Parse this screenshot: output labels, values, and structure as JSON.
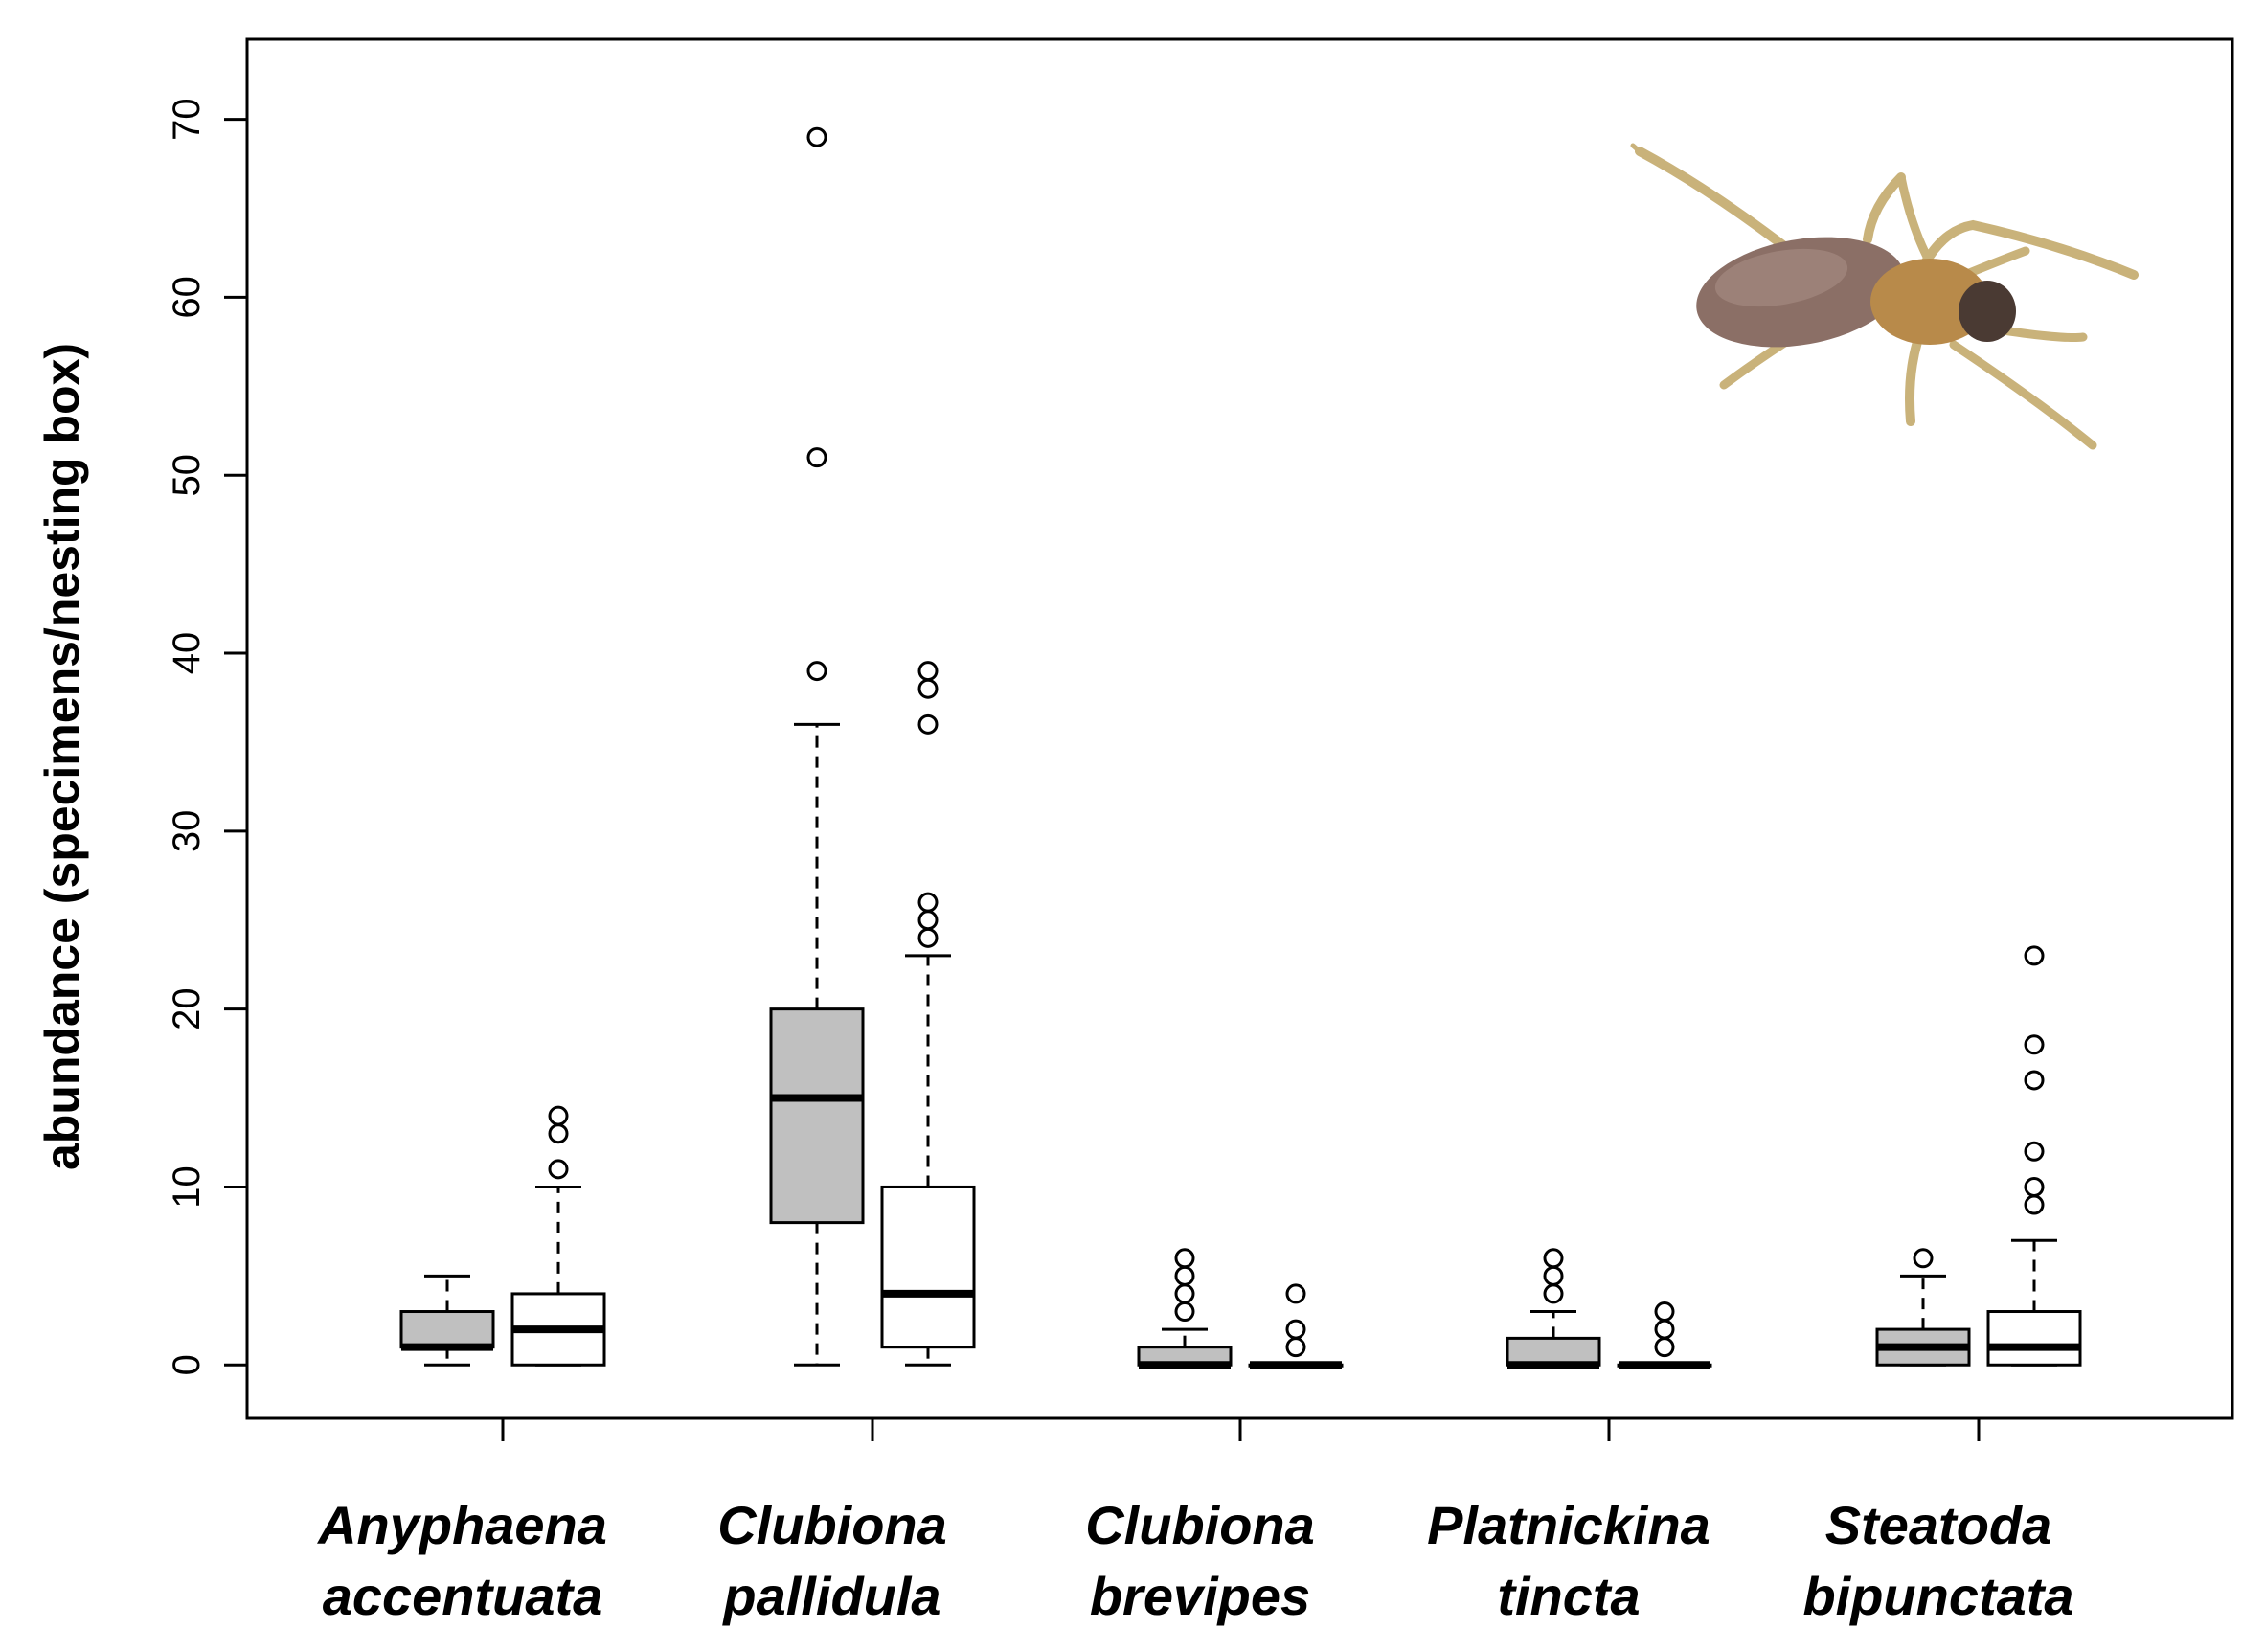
{
  "chart_data": {
    "type": "box",
    "title": "",
    "xlabel": "",
    "ylabel": "abundance  (specimens/nesting box)",
    "ylim": [
      -3,
      74.5
    ],
    "yticks": [
      0,
      10,
      20,
      30,
      40,
      50,
      60,
      70
    ],
    "grid": false,
    "legend": "none",
    "colors": {
      "group_a_fill": "#c0c0c0",
      "group_b_fill": "#ffffff",
      "stroke": "#000000"
    },
    "categories": [
      {
        "line1": "Anyphaena",
        "line2": "accentuata",
        "boxes": [
          {
            "group": "a",
            "whisker_low": 0,
            "q1": 1,
            "median": 1,
            "q3": 3,
            "whisker_high": 5,
            "outliers": []
          },
          {
            "group": "b",
            "whisker_low": 0,
            "q1": 0,
            "median": 2,
            "q3": 4,
            "whisker_high": 10,
            "outliers": [
              11,
              13,
              14
            ]
          }
        ]
      },
      {
        "line1": "Clubiona",
        "line2": "pallidula",
        "boxes": [
          {
            "group": "a",
            "whisker_low": 0,
            "q1": 8,
            "median": 15,
            "q3": 20,
            "whisker_high": 36,
            "outliers": [
              39,
              51,
              69
            ]
          },
          {
            "group": "b",
            "whisker_low": 0,
            "q1": 1,
            "median": 4,
            "q3": 10,
            "whisker_high": 23,
            "outliers": [
              24,
              25,
              26,
              36,
              38,
              39
            ]
          }
        ]
      },
      {
        "line1": "Clubiona",
        "line2": "brevipes",
        "boxes": [
          {
            "group": "a",
            "whisker_low": 0,
            "q1": 0,
            "median": 0,
            "q3": 1,
            "whisker_high": 2,
            "outliers": [
              3,
              4,
              5,
              6
            ]
          },
          {
            "group": "b",
            "whisker_low": 0,
            "q1": 0,
            "median": 0,
            "q3": 0,
            "whisker_high": 0,
            "outliers": [
              1,
              2,
              4
            ]
          }
        ]
      },
      {
        "line1": "Platnickina",
        "line2": "tincta",
        "boxes": [
          {
            "group": "a",
            "whisker_low": 0,
            "q1": 0,
            "median": 0,
            "q3": 1.5,
            "whisker_high": 3,
            "outliers": [
              4,
              5,
              6
            ]
          },
          {
            "group": "b",
            "whisker_low": 0,
            "q1": 0,
            "median": 0,
            "q3": 0,
            "whisker_high": 0,
            "outliers": [
              1,
              2,
              3
            ]
          }
        ]
      },
      {
        "line1": "Steatoda",
        "line2": "bipunctata",
        "boxes": [
          {
            "group": "a",
            "whisker_low": 0,
            "q1": 0,
            "median": 1,
            "q3": 2,
            "whisker_high": 5,
            "outliers": [
              6
            ]
          },
          {
            "group": "b",
            "whisker_low": 0,
            "q1": 0,
            "median": 1,
            "q3": 3,
            "whisker_high": 7,
            "outliers": [
              9,
              10,
              12,
              16,
              18,
              23
            ]
          }
        ]
      }
    ]
  }
}
